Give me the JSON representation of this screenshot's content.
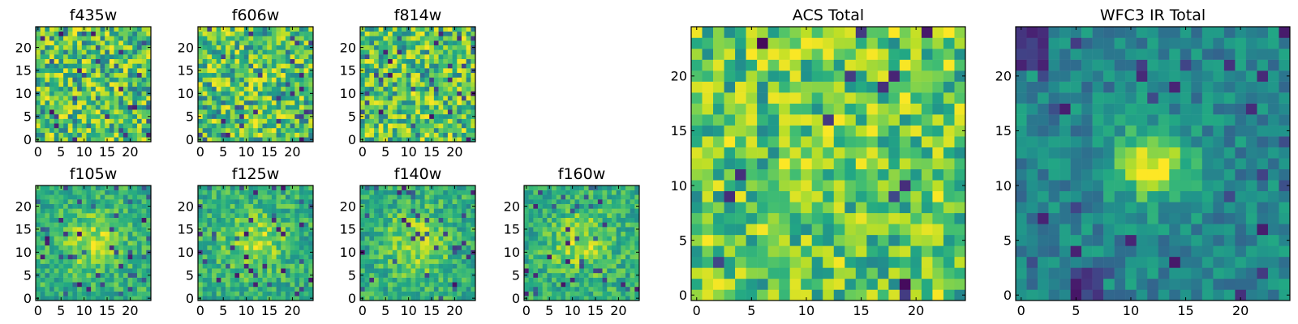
{
  "chart_data": [
    {
      "type": "heatmap",
      "title": "f435w",
      "xlim": [
        0,
        24
      ],
      "ylim": [
        0,
        24
      ],
      "xticks": [
        "0",
        "5",
        "10",
        "15",
        "20"
      ],
      "yticks": [
        "0",
        "5",
        "10",
        "15",
        "20"
      ],
      "colormap": "viridis",
      "grid_size": 25,
      "seed": 1,
      "texture": "noise"
    },
    {
      "type": "heatmap",
      "title": "f606w",
      "xlim": [
        0,
        24
      ],
      "ylim": [
        0,
        24
      ],
      "xticks": [
        "0",
        "5",
        "10",
        "15",
        "20"
      ],
      "yticks": [
        "0",
        "5",
        "10",
        "15",
        "20"
      ],
      "colormap": "viridis",
      "grid_size": 25,
      "seed": 2,
      "texture": "noise"
    },
    {
      "type": "heatmap",
      "title": "f814w",
      "xlim": [
        0,
        24
      ],
      "ylim": [
        0,
        24
      ],
      "xticks": [
        "0",
        "5",
        "10",
        "15",
        "20"
      ],
      "yticks": [
        "0",
        "5",
        "10",
        "15",
        "20"
      ],
      "colormap": "viridis",
      "grid_size": 25,
      "seed": 3,
      "texture": "noise"
    },
    {
      "type": "heatmap",
      "title": "f105w",
      "xlim": [
        0,
        24
      ],
      "ylim": [
        0,
        24
      ],
      "xticks": [
        "0",
        "5",
        "10",
        "15",
        "20"
      ],
      "yticks": [
        "0",
        "5",
        "10",
        "15",
        "20"
      ],
      "colormap": "viridis",
      "grid_size": 25,
      "seed": 4,
      "texture": "blob"
    },
    {
      "type": "heatmap",
      "title": "f125w",
      "xlim": [
        0,
        24
      ],
      "ylim": [
        0,
        24
      ],
      "xticks": [
        "0",
        "5",
        "10",
        "15",
        "20"
      ],
      "yticks": [
        "0",
        "5",
        "10",
        "15",
        "20"
      ],
      "colormap": "viridis",
      "grid_size": 25,
      "seed": 5,
      "texture": "blob"
    },
    {
      "type": "heatmap",
      "title": "f140w",
      "xlim": [
        0,
        24
      ],
      "ylim": [
        0,
        24
      ],
      "xticks": [
        "0",
        "5",
        "10",
        "15",
        "20"
      ],
      "yticks": [
        "0",
        "5",
        "10",
        "15",
        "20"
      ],
      "colormap": "viridis",
      "grid_size": 25,
      "seed": 6,
      "texture": "blob"
    },
    {
      "type": "heatmap",
      "title": "f160w",
      "xlim": [
        0,
        24
      ],
      "ylim": [
        0,
        24
      ],
      "xticks": [
        "0",
        "5",
        "10",
        "15",
        "20"
      ],
      "yticks": [
        "0",
        "5",
        "10",
        "15",
        "20"
      ],
      "colormap": "viridis",
      "grid_size": 25,
      "seed": 7,
      "texture": "blob"
    },
    {
      "type": "heatmap",
      "title": "ACS Total",
      "xlim": [
        0,
        24
      ],
      "ylim": [
        0,
        24
      ],
      "xticks": [
        "0",
        "5",
        "10",
        "15",
        "20"
      ],
      "yticks": [
        "0",
        "5",
        "10",
        "15",
        "20"
      ],
      "colormap": "viridis",
      "grid_size": 25,
      "seed": 8,
      "texture": "bright"
    },
    {
      "type": "heatmap",
      "title": "WFC3 IR Total",
      "xlim": [
        0,
        24
      ],
      "ylim": [
        0,
        24
      ],
      "xticks": [
        "0",
        "5",
        "10",
        "15",
        "20"
      ],
      "yticks": [
        "0",
        "5",
        "10",
        "15",
        "20"
      ],
      "colormap": "viridis",
      "grid_size": 25,
      "seed": 9,
      "texture": "source"
    }
  ]
}
